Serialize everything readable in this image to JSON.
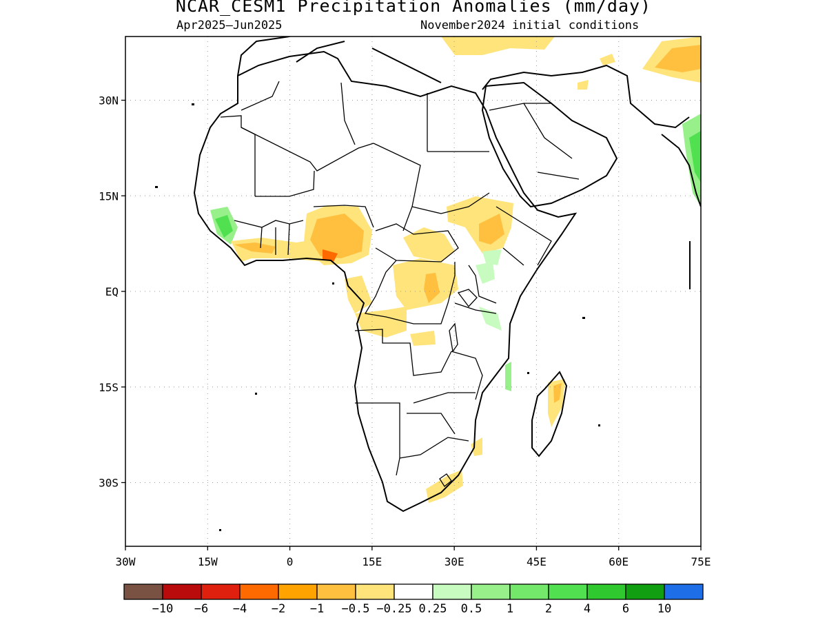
{
  "title": "NCAR_CESM1 Precipitation Anomalies (mm/day)",
  "subtitle_left": "Apr2025–Jun2025",
  "subtitle_right": "November2024 initial conditions",
  "map": {
    "lon_range": [
      -30,
      75
    ],
    "lat_range": [
      -40,
      40
    ],
    "lon_ticks": [
      {
        "value": -30,
        "label": "30W"
      },
      {
        "value": -15,
        "label": "15W"
      },
      {
        "value": 0,
        "label": "0"
      },
      {
        "value": 15,
        "label": "15E"
      },
      {
        "value": 30,
        "label": "30E"
      },
      {
        "value": 45,
        "label": "45E"
      },
      {
        "value": 60,
        "label": "60E"
      },
      {
        "value": 75,
        "label": "75E"
      }
    ],
    "lat_ticks": [
      {
        "value": 30,
        "label": "30N"
      },
      {
        "value": 15,
        "label": "15N"
      },
      {
        "value": 0,
        "label": "EQ"
      },
      {
        "value": -15,
        "label": "15S"
      },
      {
        "value": -30,
        "label": "30S"
      }
    ],
    "grid": "dotted"
  },
  "colorbar": {
    "colors": [
      "#7a5244",
      "#b90b0b",
      "#e0200e",
      "#ff6a00",
      "#ffa300",
      "#ffc040",
      "#ffe47c",
      "#ffffff",
      "#c8fbbf",
      "#97f08a",
      "#74e86a",
      "#50e050",
      "#2fc82f",
      "#119e11",
      "#1e6ee8"
    ],
    "labels": [
      "−10",
      "−6",
      "−4",
      "−2",
      "−1",
      "−0.5",
      "−0.25",
      "0.25",
      "0.5",
      "1",
      "2",
      "4",
      "6",
      "10"
    ]
  }
}
